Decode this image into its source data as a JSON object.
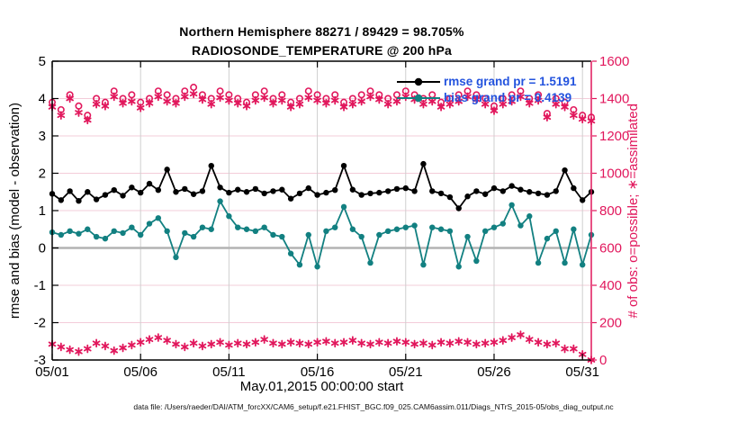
{
  "footer": {
    "data_file": "data file: /Users/raeder/DAI/ATM_forcXX/CAM6_setup/f.e21.FHIST_BGC.f09_025.CAM6assim.011/Diags_NTrS_2015-05/obs_diag_output.nc"
  },
  "chart_data": {
    "type": "line",
    "title": "Northern Hemisphere 88271 / 89429 = 98.705%",
    "subtitle": "RADIOSONDE_TEMPERATURE @ 200 hPa",
    "xlabel": "May.01,2015 00:00:00 start",
    "ylabel_left": "rmse and bias (model - observation)",
    "ylabel_right": "# of obs: o=possible; ∗=assimilated",
    "x_tick_labels": [
      "05/01",
      "05/06",
      "05/11",
      "05/16",
      "05/21",
      "05/26",
      "05/31"
    ],
    "x_tick_days": [
      0,
      5,
      10,
      15,
      20,
      25,
      30
    ],
    "x_range_days": [
      0,
      30.5
    ],
    "points_per_day": 2,
    "ylim_left": [
      -3,
      5
    ],
    "yticks_left": [
      5,
      4,
      3,
      2,
      1,
      0,
      -1,
      -2,
      -3
    ],
    "ylim_right": [
      0,
      1600
    ],
    "yticks_right": [
      1600,
      1400,
      1200,
      1000,
      800,
      600,
      400,
      200,
      0
    ],
    "grid": {
      "vertical": true,
      "horizontal_right_axis": true,
      "zero_line": true
    },
    "legend_position": "top-right-inside",
    "legend": [
      {
        "series": "rmse",
        "label": "rmse grand pr = 1.5191"
      },
      {
        "series": "bias",
        "label": "bias grand pr = 0.4139"
      }
    ],
    "stats": {
      "rmse_grand": 1.5191,
      "bias_grand": 0.4139
    },
    "colors": {
      "rmse": "#000000",
      "bias": "#128081",
      "obs": "#E1175C",
      "legend_text": "#2353DE",
      "axis_left": "#000000",
      "axis_right": "#E1175C",
      "grid_vertical": "#cfcfcf",
      "grid_horizontal": "#f3ccd9",
      "zero_line": "#b3b3b3"
    },
    "series": [
      {
        "name": "possible",
        "axis": "right",
        "marker": "open-circle",
        "line": false,
        "color": "#E1175C",
        "values": [
          1380,
          1340,
          1420,
          1360,
          1310,
          1400,
          1380,
          1440,
          1400,
          1420,
          1380,
          1400,
          1440,
          1420,
          1400,
          1440,
          1460,
          1420,
          1400,
          1440,
          1420,
          1400,
          1380,
          1420,
          1440,
          1400,
          1420,
          1380,
          1400,
          1440,
          1420,
          1400,
          1420,
          1380,
          1400,
          1420,
          1440,
          1420,
          1400,
          1420,
          1440,
          1420,
          1400,
          1420,
          1380,
          1400,
          1420,
          1440,
          1420,
          1400,
          1360,
          1400,
          1420,
          1440,
          1400,
          1420,
          1320,
          1400,
          1380,
          1340,
          1310,
          1300
        ]
      },
      {
        "name": "assimilated",
        "axis": "right",
        "marker": "asterisk",
        "line": false,
        "color": "#E1175C",
        "values": [
          1355,
          1310,
          1400,
          1325,
          1285,
          1370,
          1360,
          1410,
          1375,
          1385,
          1350,
          1375,
          1410,
          1385,
          1375,
          1410,
          1425,
          1395,
          1370,
          1405,
          1390,
          1375,
          1360,
          1390,
          1405,
          1375,
          1390,
          1355,
          1370,
          1405,
          1390,
          1375,
          1390,
          1355,
          1370,
          1385,
          1410,
          1395,
          1370,
          1385,
          1410,
          1395,
          1370,
          1385,
          1355,
          1370,
          1385,
          1410,
          1395,
          1370,
          1335,
          1370,
          1385,
          1410,
          1375,
          1390,
          1300,
          1370,
          1355,
          1310,
          1290,
          1280
        ]
      },
      {
        "name": "offtime_obs",
        "axis": "right",
        "marker": "asterisk",
        "line": false,
        "color": "#E1175C",
        "values": [
          85,
          70,
          55,
          45,
          60,
          90,
          75,
          50,
          65,
          80,
          95,
          110,
          120,
          105,
          85,
          70,
          90,
          75,
          85,
          95,
          80,
          90,
          85,
          95,
          110,
          90,
          85,
          95,
          90,
          85,
          95,
          100,
          90,
          95,
          105,
          90,
          85,
          95,
          90,
          100,
          95,
          85,
          90,
          80,
          95,
          90,
          100,
          95,
          85,
          90,
          95,
          105,
          120,
          135,
          110,
          95,
          85,
          90,
          60,
          60,
          30,
          0
        ]
      },
      {
        "name": "rmse",
        "axis": "left",
        "marker": "filled-circle",
        "line": true,
        "color": "#000000",
        "values": [
          1.45,
          1.28,
          1.52,
          1.26,
          1.5,
          1.3,
          1.42,
          1.55,
          1.4,
          1.62,
          1.48,
          1.72,
          1.55,
          2.1,
          1.5,
          1.58,
          1.44,
          1.52,
          2.2,
          1.62,
          1.48,
          1.56,
          1.5,
          1.58,
          1.46,
          1.52,
          1.56,
          1.32,
          1.46,
          1.6,
          1.42,
          1.48,
          1.55,
          2.2,
          1.56,
          1.42,
          1.46,
          1.48,
          1.52,
          1.58,
          1.6,
          1.52,
          2.25,
          1.52,
          1.46,
          1.36,
          1.06,
          1.38,
          1.52,
          1.44,
          1.6,
          1.52,
          1.66,
          1.56,
          1.5,
          1.46,
          1.42,
          1.52,
          2.08,
          1.6,
          1.28,
          1.5
        ]
      },
      {
        "name": "bias",
        "axis": "left",
        "marker": "filled-circle",
        "line": true,
        "color": "#128081",
        "values": [
          0.42,
          0.35,
          0.45,
          0.38,
          0.5,
          0.3,
          0.25,
          0.45,
          0.4,
          0.55,
          0.35,
          0.65,
          0.8,
          0.45,
          -0.25,
          0.4,
          0.3,
          0.55,
          0.5,
          1.25,
          0.85,
          0.55,
          0.5,
          0.45,
          0.55,
          0.35,
          0.3,
          -0.15,
          -0.45,
          0.35,
          -0.5,
          0.45,
          0.55,
          1.1,
          0.5,
          0.3,
          -0.4,
          0.35,
          0.45,
          0.5,
          0.55,
          0.6,
          -0.45,
          0.55,
          0.5,
          0.45,
          -0.5,
          0.3,
          -0.35,
          0.45,
          0.55,
          0.65,
          1.15,
          0.6,
          0.85,
          -0.4,
          0.25,
          0.45,
          -0.4,
          0.5,
          -0.45,
          0.35
        ]
      }
    ]
  }
}
